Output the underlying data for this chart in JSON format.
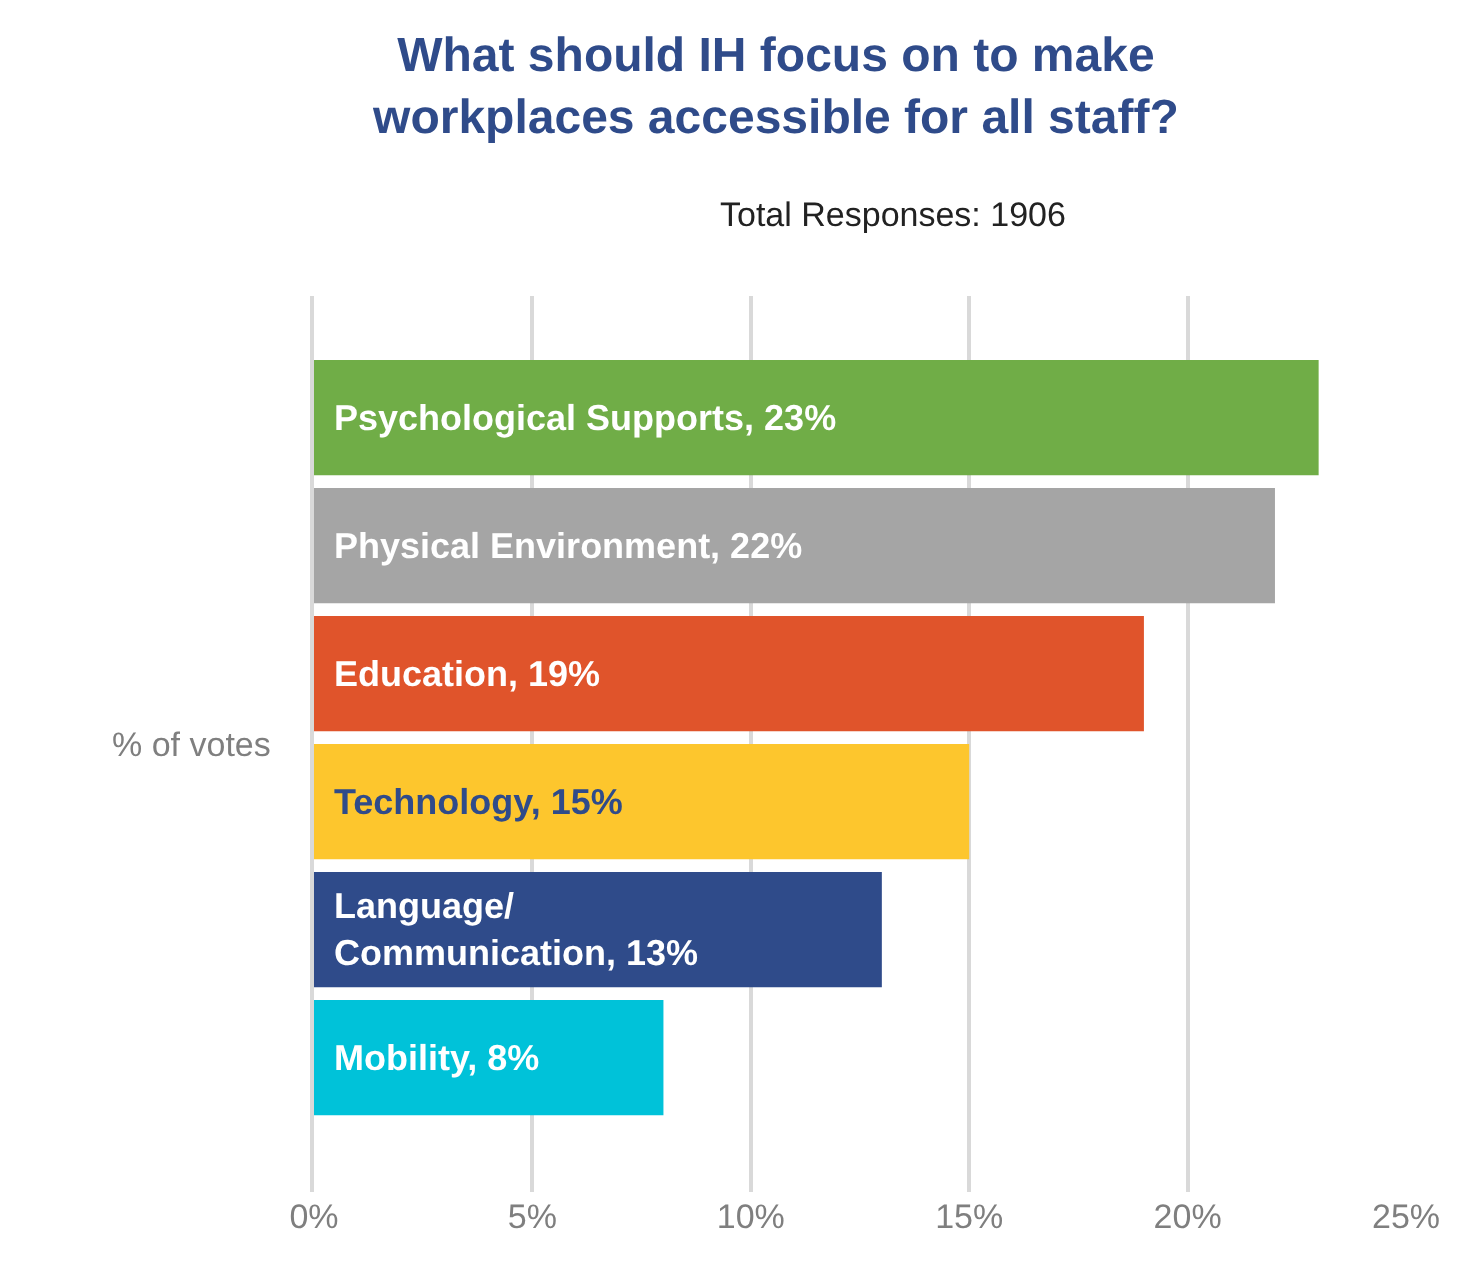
{
  "chart_data": {
    "type": "bar",
    "orientation": "horizontal",
    "title": "What should IH focus on to make\nworkplaces accessible for all staff?",
    "subtitle": "Total Responses: 1906",
    "ylabel": "% of votes",
    "categories": [
      null,
      null,
      null,
      null,
      null,
      null
    ],
    "values": [
      23,
      22,
      19,
      15,
      13,
      8
    ],
    "colors": [
      "#70ad47",
      "#a5a5a5",
      "#e0542b",
      "#fdc62d",
      "#2f4b8a",
      "#00c2d9"
    ],
    "value_labels": [
      "Psychological Supports, 23%",
      "Physical Environment, 22%",
      "Education, 19%",
      "Technology, 15%",
      "Language/\nCommunication, 13%",
      "Mobility, 8%"
    ],
    "xlim": [
      0,
      25
    ],
    "xticks": [
      {
        "value": 0,
        "label": "0%"
      },
      {
        "value": 5,
        "label": "5%"
      },
      {
        "value": 10,
        "label": "10%"
      },
      {
        "value": 15,
        "label": "15%"
      },
      {
        "value": 20,
        "label": "20%"
      },
      {
        "value": 25,
        "label": "25%"
      }
    ],
    "grid": "x",
    "legend": false,
    "tick_labels": "x"
  }
}
